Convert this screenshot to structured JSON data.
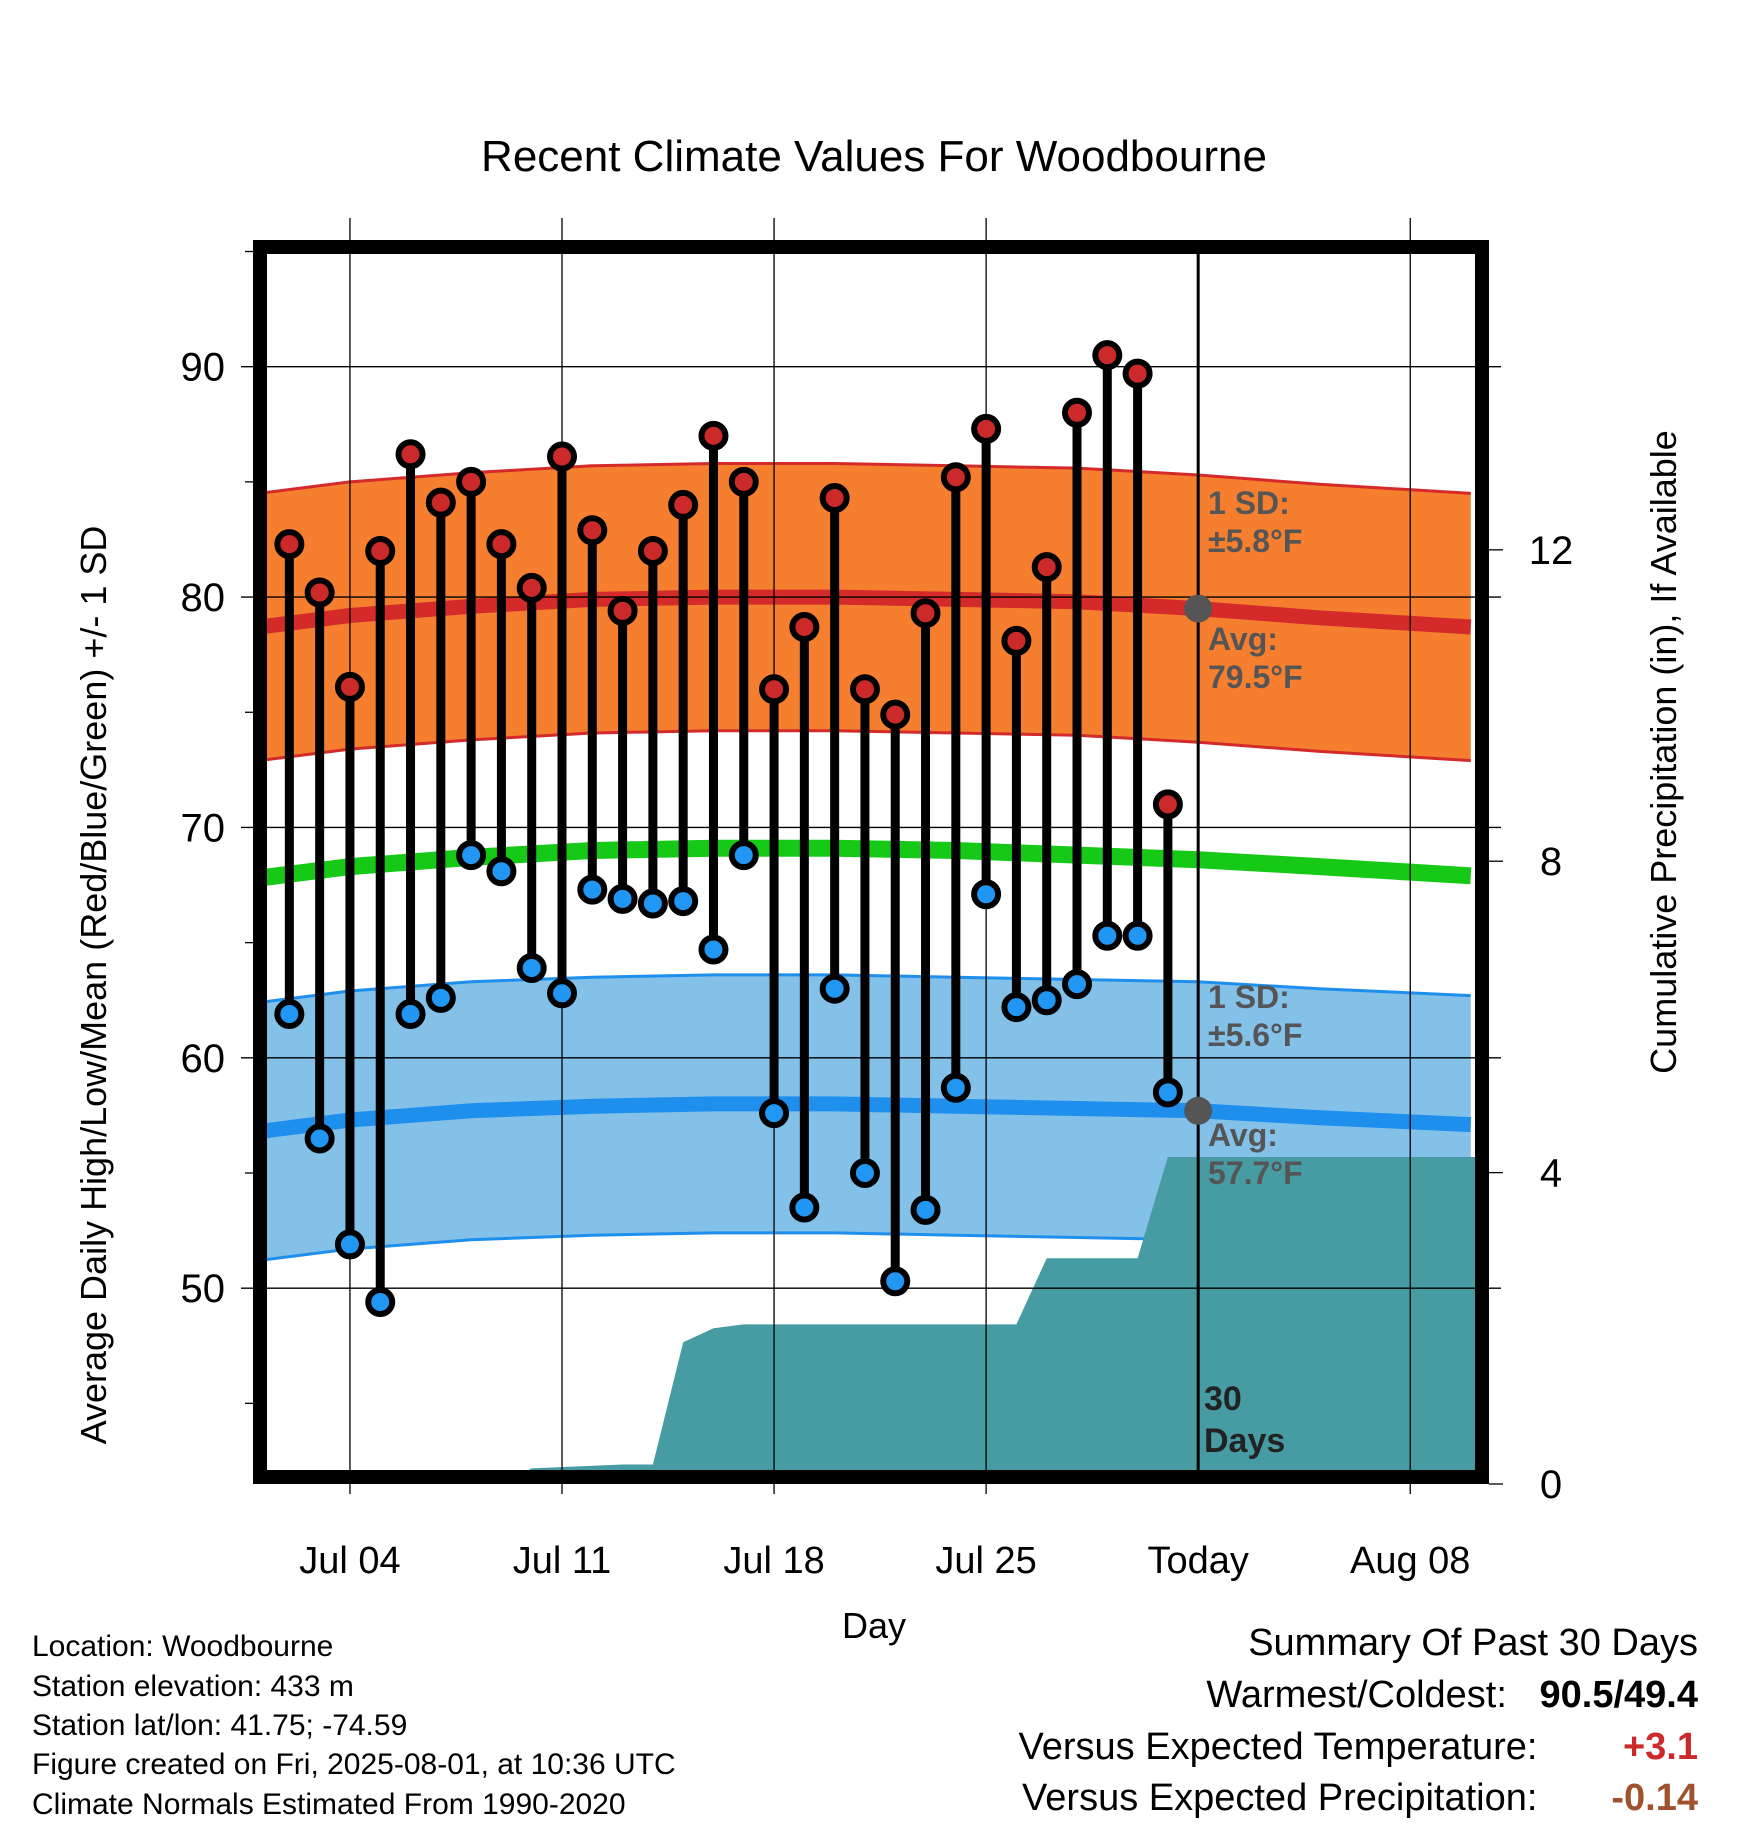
{
  "title": "Recent Climate Values For Woodbourne",
  "chart_data": {
    "type": "line",
    "title": "Recent Climate Values For Woodbourne",
    "xlabel": "Day",
    "ylabel_left": "Average Daily High/Low/Mean (Red/Blue/Green) +/- 1 SD",
    "ylabel_right": "Cumulative Precipitation (in), If Available",
    "x_tick_labels": [
      "Jul 04",
      "Jul 11",
      "Jul 18",
      "Jul 25",
      "Today",
      "Aug 08"
    ],
    "x_tick_days": [
      4,
      11,
      18,
      25,
      32,
      39
    ],
    "today_day": 32,
    "x_range": [
      0.8,
      41.6
    ],
    "y_left_range": [
      41.5,
      95.5
    ],
    "y_left_ticks": [
      50,
      60,
      70,
      80,
      90
    ],
    "y_right_range": [
      0,
      15.98
    ],
    "y_right_ticks": [
      0,
      4,
      8,
      12
    ],
    "grid": true,
    "daily_days": [
      2,
      3,
      4,
      5,
      6,
      7,
      8,
      9,
      10,
      11,
      12,
      13,
      14,
      15,
      16,
      17,
      18,
      19,
      20,
      21,
      22,
      23,
      24,
      25,
      26,
      27,
      28,
      29,
      30,
      31
    ],
    "daily_high": [
      82.3,
      80.2,
      76.1,
      82.0,
      86.2,
      84.1,
      85.0,
      82.3,
      80.4,
      86.1,
      82.9,
      79.4,
      82.0,
      84.0,
      87.0,
      85.0,
      76.0,
      78.7,
      84.3,
      76.0,
      74.9,
      79.3,
      85.2,
      87.3,
      78.1,
      81.3,
      88.0,
      90.5,
      89.7,
      71.0
    ],
    "daily_low": [
      61.9,
      56.5,
      51.9,
      49.4,
      61.9,
      62.6,
      68.8,
      68.1,
      63.9,
      62.8,
      67.3,
      66.9,
      66.7,
      66.8,
      64.7,
      68.8,
      57.6,
      53.5,
      63.0,
      55.0,
      50.3,
      53.4,
      58.7,
      67.1,
      62.2,
      62.5,
      63.2,
      65.3,
      65.3,
      58.5
    ],
    "normal_curve_days": [
      1,
      4,
      8,
      12,
      16,
      20,
      24,
      28,
      32,
      36,
      41
    ],
    "normal_high": [
      78.7,
      79.2,
      79.6,
      79.9,
      80.0,
      80.0,
      79.9,
      79.8,
      79.5,
      79.1,
      78.7
    ],
    "normal_high_sd": 5.8,
    "normal_low": [
      56.8,
      57.3,
      57.7,
      57.9,
      58.0,
      58.0,
      57.9,
      57.8,
      57.7,
      57.4,
      57.1
    ],
    "normal_low_sd": 5.6,
    "normal_mean": [
      67.8,
      68.3,
      68.7,
      69.0,
      69.1,
      69.1,
      69.0,
      68.8,
      68.6,
      68.3,
      67.9
    ],
    "precip_days": [
      1,
      9,
      10,
      13,
      14,
      15,
      16,
      17,
      26,
      27,
      29,
      30,
      31,
      41.2
    ],
    "precip_cum": [
      0,
      0,
      0.2,
      0.25,
      0.25,
      1.82,
      2.0,
      2.05,
      2.05,
      2.9,
      2.9,
      2.9,
      4.2,
      4.2
    ],
    "annotations": {
      "high_sd_label": "1 SD:",
      "high_sd_value": "±5.8°F",
      "high_avg_label": "Avg:",
      "high_avg_value": "79.5°F",
      "low_sd_label": "1 SD:",
      "low_sd_value": "±5.6°F",
      "low_avg_label": "Avg:",
      "low_avg_value": "57.7°F",
      "days_label_1": "30",
      "days_label_2": "Days"
    },
    "today_high_avg": 79.5,
    "today_low_avg": 57.7,
    "colors": {
      "high_band": "#f57f2f",
      "high_line": "#d42a2a",
      "low_band": "#83c1e8",
      "low_line": "#1f8fee",
      "mean_line": "#17c917",
      "precip": "#479ba3",
      "high_dot": "#cc2a2a",
      "low_dot": "#2196f3",
      "today_dot": "#555555"
    }
  },
  "station_info": {
    "location": "Location: Woodbourne",
    "elevation": "Station elevation: 433 m",
    "latlon": "Station lat/lon: 41.75; -74.59",
    "created": "Figure created on Fri, 2025-08-01, at 10:36 UTC",
    "normals": "Climate Normals Estimated From 1990-2020"
  },
  "summary": {
    "heading": "Summary Of Past 30 Days",
    "warm_cold_label": "Warmest/Coldest:",
    "warmest": "90.5",
    "sep": "/",
    "coldest": "49.4",
    "temp_label": "Versus Expected Temperature:",
    "temp_value": "+3.1",
    "temp_color": "#cc2a2a",
    "precip_label": "Versus Expected Precipitation:",
    "precip_value": "-0.14",
    "precip_color": "#a0522d"
  }
}
